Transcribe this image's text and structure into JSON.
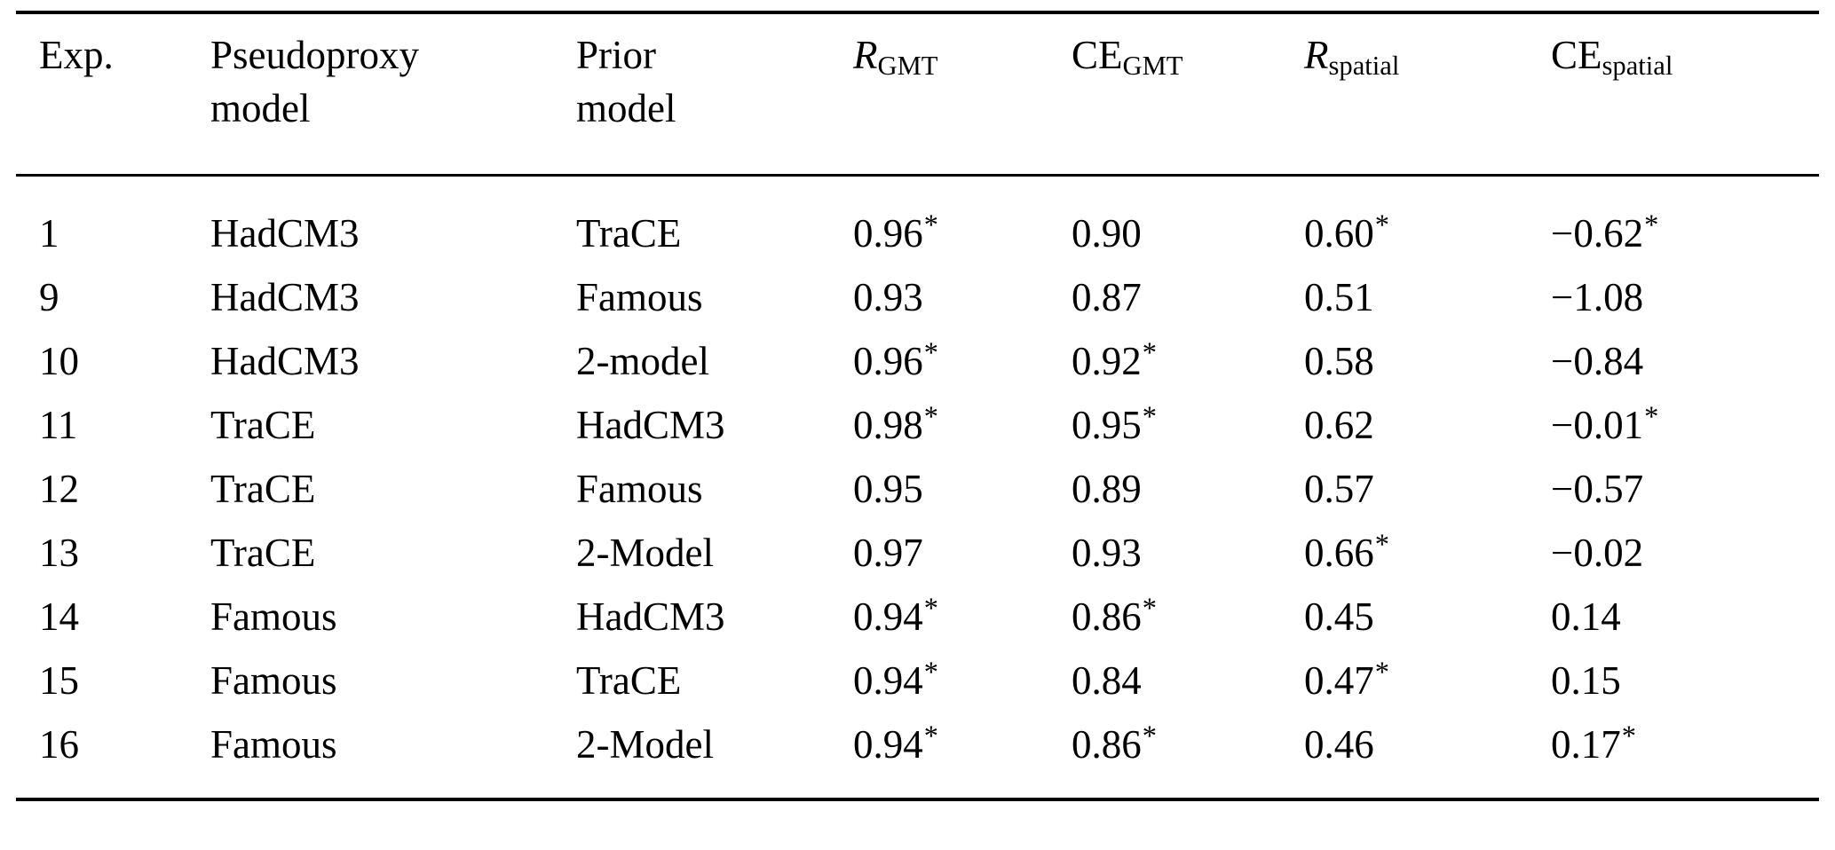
{
  "table": {
    "columns": [
      {
        "id": "exp",
        "lines": [
          "Exp."
        ]
      },
      {
        "id": "pseudoproxy_model",
        "lines": [
          "Pseudoproxy",
          "model"
        ]
      },
      {
        "id": "prior_model",
        "lines": [
          "Prior",
          "model"
        ]
      },
      {
        "id": "r_gmt",
        "base": "R",
        "base_italic": true,
        "sub": "GMT"
      },
      {
        "id": "ce_gmt",
        "base": "CE",
        "base_italic": false,
        "sub": "GMT"
      },
      {
        "id": "r_spatial",
        "base": "R",
        "base_italic": true,
        "sub": "spatial"
      },
      {
        "id": "ce_spatial",
        "base": "CE",
        "base_italic": false,
        "sub": "spatial"
      }
    ],
    "rows": [
      {
        "exp": "1",
        "pseudoproxy_model": "HadCM3",
        "prior_model": "TraCE",
        "r_gmt": "0.96*",
        "ce_gmt": "0.90",
        "r_spatial": "0.60*",
        "ce_spatial": "−0.62*"
      },
      {
        "exp": "9",
        "pseudoproxy_model": "HadCM3",
        "prior_model": "Famous",
        "r_gmt": "0.93",
        "ce_gmt": "0.87",
        "r_spatial": "0.51",
        "ce_spatial": "−1.08"
      },
      {
        "exp": "10",
        "pseudoproxy_model": "HadCM3",
        "prior_model": "2-model",
        "r_gmt": "0.96*",
        "ce_gmt": "0.92*",
        "r_spatial": "0.58",
        "ce_spatial": "−0.84"
      },
      {
        "exp": "11",
        "pseudoproxy_model": "TraCE",
        "prior_model": "HadCM3",
        "r_gmt": "0.98*",
        "ce_gmt": "0.95*",
        "r_spatial": "0.62",
        "ce_spatial": "−0.01*"
      },
      {
        "exp": "12",
        "pseudoproxy_model": "TraCE",
        "prior_model": "Famous",
        "r_gmt": "0.95",
        "ce_gmt": "0.89",
        "r_spatial": "0.57",
        "ce_spatial": "−0.57"
      },
      {
        "exp": "13",
        "pseudoproxy_model": "TraCE",
        "prior_model": "2-Model",
        "r_gmt": "0.97",
        "ce_gmt": "0.93",
        "r_spatial": "0.66*",
        "ce_spatial": "−0.02"
      },
      {
        "exp": "14",
        "pseudoproxy_model": "Famous",
        "prior_model": "HadCM3",
        "r_gmt": "0.94*",
        "ce_gmt": "0.86*",
        "r_spatial": "0.45",
        "ce_spatial": "0.14"
      },
      {
        "exp": "15",
        "pseudoproxy_model": "Famous",
        "prior_model": "TraCE",
        "r_gmt": "0.94*",
        "ce_gmt": "0.84",
        "r_spatial": "0.47*",
        "ce_spatial": "0.15"
      },
      {
        "exp": "16",
        "pseudoproxy_model": "Famous",
        "prior_model": "2-Model",
        "r_gmt": "0.94*",
        "ce_gmt": "0.86*",
        "r_spatial": "0.46",
        "ce_spatial": "0.17*"
      }
    ]
  }
}
